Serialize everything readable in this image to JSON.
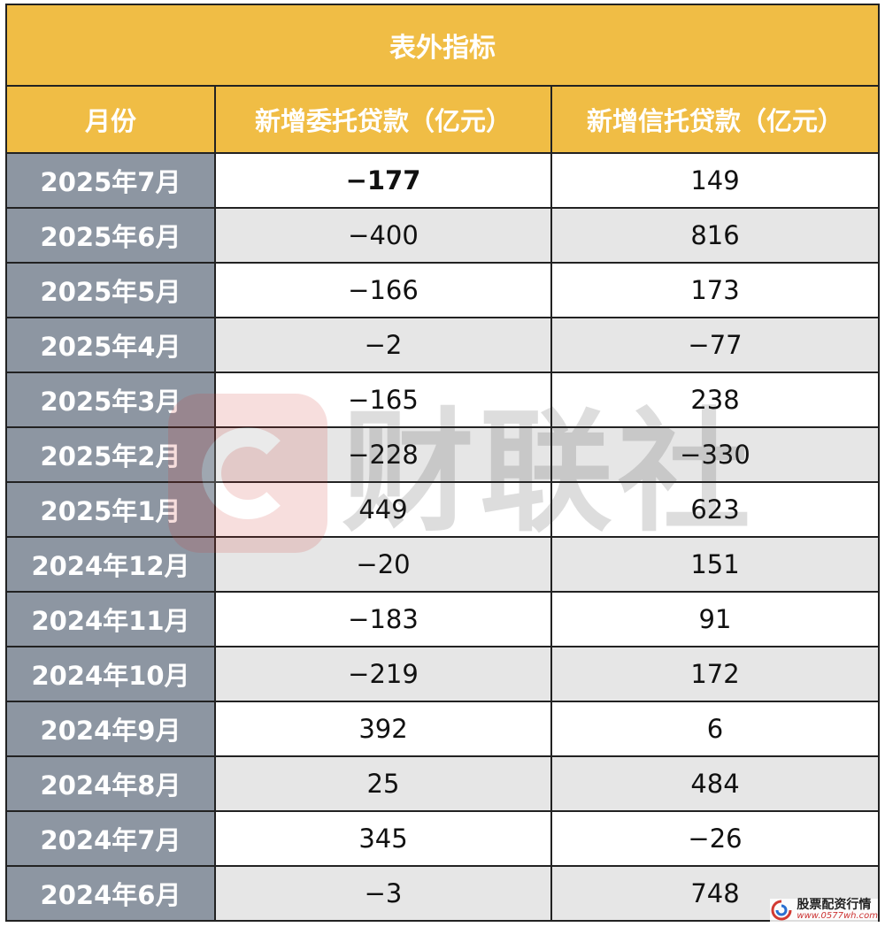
{
  "table": {
    "title": "表外指标",
    "headers": {
      "month": "月份",
      "entrusted": "新增委托贷款（亿元）",
      "trust": "新增信托贷款（亿元）"
    },
    "rows": [
      {
        "month": "2025年7月",
        "entrusted": "−177",
        "trust": "149"
      },
      {
        "month": "2025年6月",
        "entrusted": "−400",
        "trust": "816"
      },
      {
        "month": "2025年5月",
        "entrusted": "−166",
        "trust": "173"
      },
      {
        "month": "2025年4月",
        "entrusted": "−2",
        "trust": "−77"
      },
      {
        "month": "2025年3月",
        "entrusted": "−165",
        "trust": "238"
      },
      {
        "month": "2025年2月",
        "entrusted": "−228",
        "trust": "−330"
      },
      {
        "month": "2025年1月",
        "entrusted": "449",
        "trust": "623"
      },
      {
        "month": "2024年12月",
        "entrusted": "−20",
        "trust": "151"
      },
      {
        "month": "2024年11月",
        "entrusted": "−183",
        "trust": "91"
      },
      {
        "month": "2024年10月",
        "entrusted": "−219",
        "trust": "172"
      },
      {
        "month": "2024年9月",
        "entrusted": "392",
        "trust": "6"
      },
      {
        "month": "2024年8月",
        "entrusted": "25",
        "trust": "484"
      },
      {
        "month": "2024年7月",
        "entrusted": "345",
        "trust": "−26"
      },
      {
        "month": "2024年6月",
        "entrusted": "−3",
        "trust": "748"
      }
    ]
  },
  "watermark": {
    "text": "财联社",
    "icon": "cls-logo-icon"
  },
  "badge": {
    "title": "股票配资行情",
    "url": "www.0577wh.com",
    "icon": "swirl-logo-icon"
  },
  "colors": {
    "header_bg": "#f0bd45",
    "month_col_bg": "#8d96a2",
    "stripe_bg": "#e6e6e6",
    "border": "#222222"
  }
}
